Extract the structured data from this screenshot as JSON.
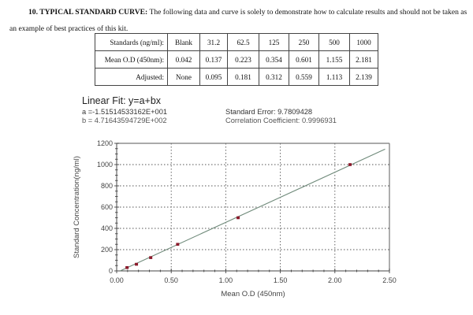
{
  "document": {
    "heading_bold": "10. TYPICAL STANDARD CURVE:",
    "intro_text": " The following data and curve is solely to demonstrate how to calculate results and should not be taken as an example of best practices of this kit."
  },
  "table": {
    "rows": [
      {
        "label": "Standards (ng/ml):",
        "cells": [
          "Blank",
          "31.2",
          "62.5",
          "125",
          "250",
          "500",
          "1000"
        ]
      },
      {
        "label": "Mean O.D (450nm):",
        "cells": [
          "0.042",
          "0.137",
          "0.223",
          "0.354",
          "0.601",
          "1.155",
          "2.181"
        ]
      },
      {
        "label": "Adjusted:",
        "cells": [
          "None",
          "0.095",
          "0.181",
          "0.312",
          "0.559",
          "1.113",
          "2.139"
        ]
      }
    ]
  },
  "fit": {
    "title": "Linear Fit: y=a+bx",
    "a": "a =-1.51514533162E+001",
    "b": "b = 4.71643594729E+002",
    "standard_error": "Standard Error: 9.7809428",
    "correlation": "Correlation Coefficient: 0.9996931"
  },
  "chart_data": {
    "type": "scatter",
    "title": "Linear Fit: y=a+bx",
    "xlabel": "Mean O.D (450nm)",
    "ylabel": "Standard Concentration(ng/ml)",
    "xlim": [
      0,
      2.5
    ],
    "ylim": [
      0,
      1200
    ],
    "x_ticks": [
      "0.00",
      "0.50",
      "1.00",
      "1.50",
      "2.00",
      "2.50"
    ],
    "y_ticks": [
      "0",
      "200",
      "400",
      "600",
      "800",
      "1000",
      "1200"
    ],
    "grid": true,
    "series": [
      {
        "name": "Standards",
        "marker": "square",
        "color": "#8b1a2b",
        "x": [
          0.095,
          0.181,
          0.312,
          0.559,
          1.113,
          2.139
        ],
        "y": [
          31.2,
          62.5,
          125,
          250,
          500,
          1000
        ]
      },
      {
        "name": "Linear Fit",
        "type": "line",
        "color": "#6f8a7a",
        "intercept": -15.1514533162,
        "slope": 471.643594729,
        "x": [
          0.032,
          2.46
        ],
        "y": [
          0,
          1145
        ]
      }
    ],
    "annotations": [
      "a =-1.51514533162E+001",
      "b = 4.71643594729E+002",
      "Standard Error: 9.7809428",
      "Correlation Coefficient: 0.9996931"
    ]
  }
}
